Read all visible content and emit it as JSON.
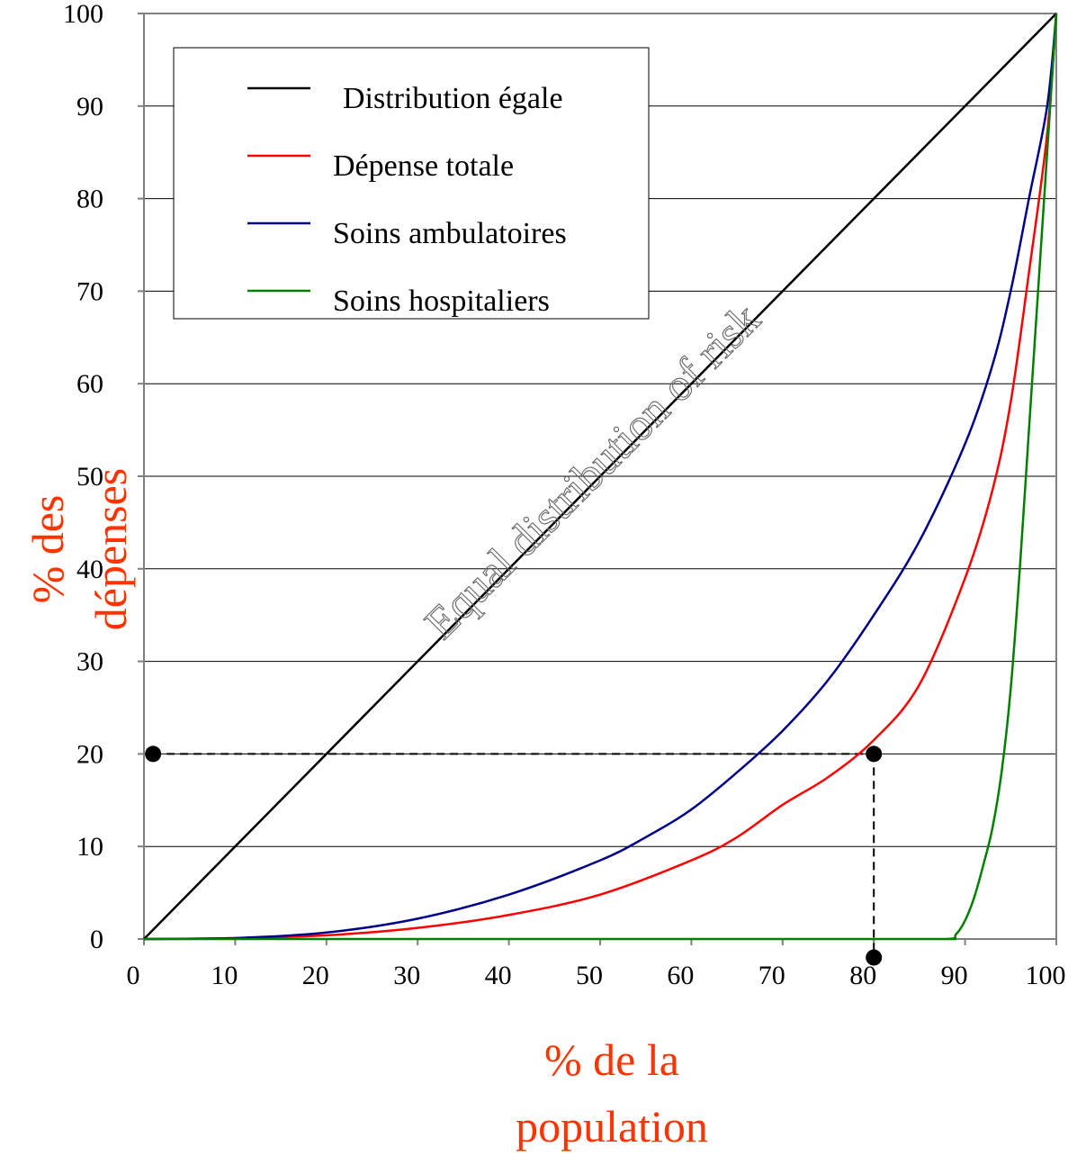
{
  "chart_data": {
    "type": "line",
    "title": "",
    "xlabel": [
      "% de la",
      "population"
    ],
    "ylabel": [
      "% des",
      "dépenses"
    ],
    "xlim": [
      0,
      100
    ],
    "ylim": [
      0,
      100
    ],
    "x_ticks": [
      "0",
      "10",
      "20",
      "30",
      "40",
      "50",
      "60",
      "70",
      "80",
      "90",
      "100"
    ],
    "y_ticks": [
      "0",
      "10",
      "20",
      "30",
      "40",
      "50",
      "60",
      "70",
      "80",
      "90",
      "100"
    ],
    "grid": "horizontal",
    "legend_position": "top-left",
    "annotation": "Equal distribution of risk",
    "series": [
      {
        "name": "Distribution égale",
        "color": "#000000",
        "x": [
          0,
          100
        ],
        "y": [
          0,
          100
        ]
      },
      {
        "name": "Dépense totale",
        "color": "#ff0000",
        "x": [
          0,
          10,
          20,
          30,
          40,
          50,
          60,
          65,
          70,
          75,
          80,
          85,
          90,
          93,
          95,
          97,
          99,
          100
        ],
        "y": [
          0,
          0.1,
          0.4,
          1.2,
          2.6,
          4.8,
          8.5,
          11,
          14.5,
          17.5,
          21.5,
          27.5,
          39,
          48.5,
          58,
          72,
          87,
          100
        ]
      },
      {
        "name": "Soins ambulatoires",
        "color": "#00008b",
        "x": [
          0,
          10,
          20,
          30,
          40,
          50,
          55,
          60,
          65,
          70,
          75,
          80,
          85,
          90,
          93,
          95,
          97,
          99,
          100
        ],
        "y": [
          0,
          0.1,
          0.7,
          2.2,
          4.8,
          8.5,
          11,
          14,
          18,
          22.5,
          28,
          35,
          43,
          53.5,
          62,
          70,
          80,
          90,
          100
        ]
      },
      {
        "name": "Soins hospitaliers",
        "color": "#008000",
        "x": [
          0,
          80,
          88,
          89,
          90,
          91,
          92,
          93,
          94,
          95,
          96,
          97,
          98,
          99,
          100
        ],
        "y": [
          0,
          0,
          0,
          0.5,
          2,
          4.5,
          8,
          12,
          18,
          27,
          40,
          55,
          70,
          85,
          100
        ]
      }
    ],
    "reference_points": {
      "color": "#000000",
      "markers": [
        {
          "x": 1,
          "y": 20
        },
        {
          "x": 80,
          "y": 20
        },
        {
          "x": 80,
          "y": -2
        }
      ],
      "dashed_lines": [
        {
          "from": [
            1,
            20
          ],
          "to": [
            80,
            20
          ]
        },
        {
          "from": [
            80,
            20
          ],
          "to": [
            80,
            -2
          ]
        }
      ]
    },
    "colors": {
      "axis_title": "#ff3300",
      "grid": "#000000",
      "frame": "#808080"
    }
  }
}
